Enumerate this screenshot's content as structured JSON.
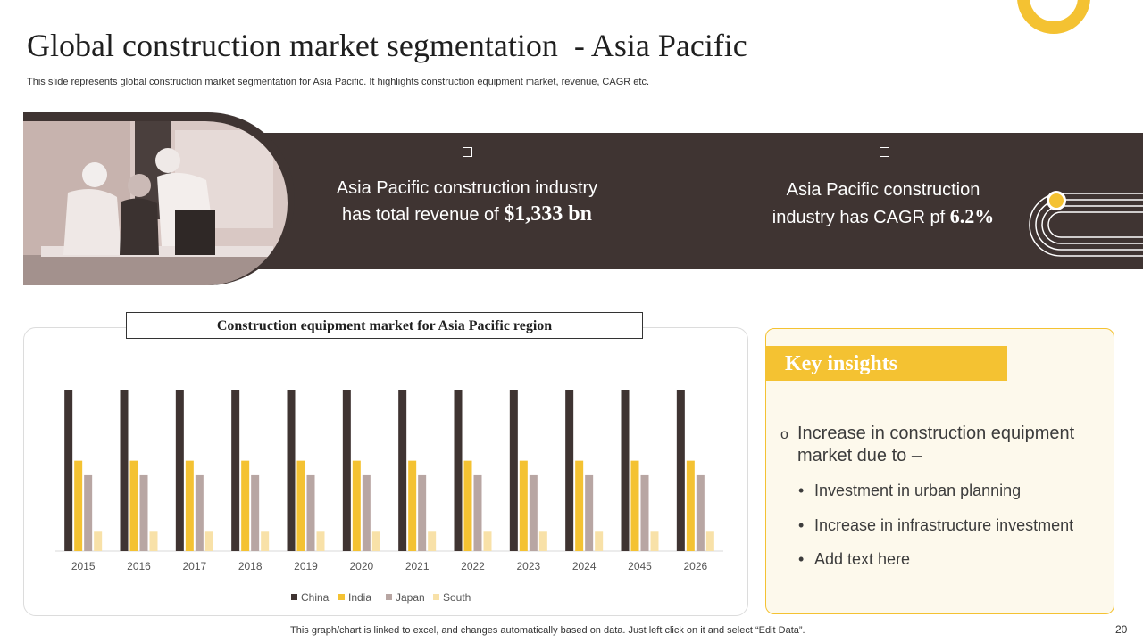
{
  "slide": {
    "title": "Global construction market segmentation  - Asia Pacific",
    "subtitle": "This slide represents global construction market segmentation for Asia Pacific. It highlights construction equipment market, revenue, CAGR etc.",
    "footer": "This graph/chart is linked to excel,  and changes automatically based on data. Just left click on it and select “Edit Data”.",
    "page_number": "20"
  },
  "stats": {
    "revenue_line1": "Asia Pacific construction industry",
    "revenue_line2": "has total revenue of ",
    "revenue_value": "$1,333 bn",
    "cagr_line1": "Asia Pacific construction",
    "cagr_line2": "industry has CAGR pf ",
    "cagr_value": "6.2%"
  },
  "insights": {
    "header": "Key insights",
    "bullet_glyph": "o",
    "main": "Increase in construction equipment market due to –",
    "items": [
      "Investment in urban planning",
      "Increase in infrastructure investment",
      "Add text here"
    ]
  },
  "colors": {
    "dark": "#3f3432",
    "accent": "#f4c232",
    "muted": "#b8a6a3",
    "light": "#f8e1a8"
  },
  "chart_data": {
    "type": "bar",
    "title": "Construction equipment market for Asia Pacific region",
    "categories": [
      "2015",
      "2016",
      "2017",
      "2018",
      "2019",
      "2020",
      "2021",
      "2022",
      "2023",
      "2024",
      "2045",
      "2026"
    ],
    "series": [
      {
        "name": "China",
        "color": "#3f3432",
        "values": [
          10,
          10,
          10,
          10,
          10,
          10,
          10,
          10,
          10,
          10,
          10,
          10
        ]
      },
      {
        "name": "India",
        "color": "#f4c232",
        "values": [
          5.6,
          5.6,
          5.6,
          5.6,
          5.6,
          5.6,
          5.6,
          5.6,
          5.6,
          5.6,
          5.6,
          5.6
        ]
      },
      {
        "name": "Japan",
        "color": "#b8a6a3",
        "values": [
          4.7,
          4.7,
          4.7,
          4.7,
          4.7,
          4.7,
          4.7,
          4.7,
          4.7,
          4.7,
          4.7,
          4.7
        ]
      },
      {
        "name": "South",
        "color": "#f8e1a8",
        "values": [
          1.2,
          1.2,
          1.2,
          1.2,
          1.2,
          1.2,
          1.2,
          1.2,
          1.2,
          1.2,
          1.2,
          1.2
        ]
      }
    ],
    "ylim": [
      0,
      10
    ],
    "grid": false,
    "legend_position": "bottom"
  }
}
